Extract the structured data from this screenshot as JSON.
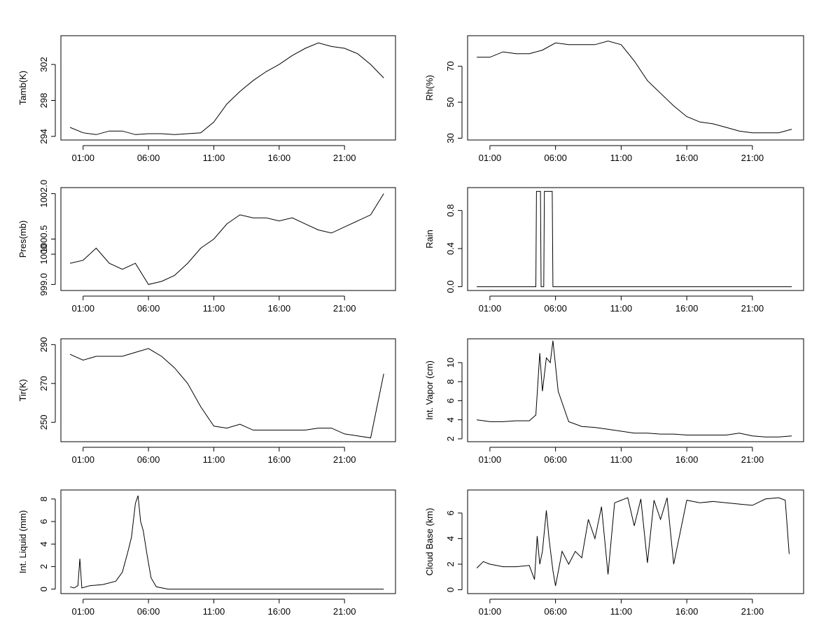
{
  "chart_data": [
    {
      "type": "line",
      "ylabel": "Tamb(K)",
      "x_ticks": [
        "01:00",
        "06:00",
        "11:00",
        "16:00",
        "21:00"
      ],
      "y_ticks": [
        "294",
        "298",
        "302"
      ],
      "ylim": [
        293.6,
        305.2
      ],
      "x": [
        0,
        1,
        2,
        3,
        4,
        5,
        6,
        7,
        8,
        9,
        10,
        11,
        12,
        13,
        14,
        15,
        16,
        17,
        18,
        19,
        20,
        21,
        22,
        23,
        24
      ],
      "values": [
        295.0,
        294.4,
        294.2,
        294.6,
        294.6,
        294.2,
        294.3,
        294.3,
        294.2,
        294.3,
        294.4,
        295.6,
        297.6,
        299.0,
        300.2,
        301.2,
        302.0,
        303.0,
        303.8,
        304.4,
        304.0,
        303.8,
        303.2,
        302.0,
        300.5
      ]
    },
    {
      "type": "line",
      "ylabel": "Rh(%)",
      "x_ticks": [
        "01:00",
        "06:00",
        "11:00",
        "16:00",
        "21:00"
      ],
      "y_ticks": [
        "30",
        "50",
        "70"
      ],
      "ylim": [
        29,
        87
      ],
      "x": [
        0,
        1,
        2,
        3,
        4,
        5,
        6,
        7,
        8,
        9,
        10,
        11,
        12,
        13,
        14,
        15,
        16,
        17,
        18,
        19,
        20,
        21,
        22,
        23,
        24
      ],
      "values": [
        75,
        75,
        78,
        77,
        77,
        79,
        83,
        82,
        82,
        82,
        84,
        82,
        73,
        62,
        55,
        48,
        42,
        39,
        38,
        36,
        34,
        33,
        33,
        33,
        35
      ]
    },
    {
      "type": "line",
      "ylabel": "Pres(mb)",
      "x_ticks": [
        "01:00",
        "06:00",
        "11:00",
        "16:00",
        "21:00"
      ],
      "y_ticks": [
        "999.0",
        "1000",
        "1000.5",
        "1002.0"
      ],
      "ylim": [
        998.8,
        1002.2
      ],
      "x": [
        0,
        1,
        2,
        3,
        4,
        5,
        6,
        7,
        8,
        9,
        10,
        11,
        12,
        13,
        14,
        15,
        16,
        17,
        18,
        19,
        20,
        21,
        22,
        23,
        24
      ],
      "values": [
        999.7,
        999.8,
        1000.2,
        999.7,
        999.5,
        999.7,
        999.0,
        999.1,
        999.3,
        999.7,
        1000.2,
        1000.5,
        1001.0,
        1001.3,
        1001.2,
        1001.2,
        1001.1,
        1001.2,
        1001.0,
        1000.8,
        1000.7,
        1000.9,
        1001.1,
        1001.3,
        1002.0
      ]
    },
    {
      "type": "line",
      "ylabel": "Rain",
      "x_ticks": [
        "01:00",
        "06:00",
        "11:00",
        "16:00",
        "21:00"
      ],
      "y_ticks": [
        "0.0",
        "0.4",
        "0.8"
      ],
      "ylim": [
        -0.04,
        1.04
      ],
      "x": [
        0,
        4.5,
        4.55,
        4.85,
        4.9,
        5.1,
        5.15,
        5.75,
        5.8,
        24
      ],
      "values": [
        0,
        0,
        1,
        1,
        0,
        0,
        1,
        1,
        0,
        0
      ]
    },
    {
      "type": "line",
      "ylabel": "Tir(K)",
      "x_ticks": [
        "01:00",
        "06:00",
        "11:00",
        "16:00",
        "21:00"
      ],
      "y_ticks": [
        "250",
        "270",
        "290"
      ],
      "ylim": [
        240,
        293
      ],
      "x": [
        0,
        1,
        2,
        3,
        4,
        5,
        6,
        7,
        8,
        9,
        10,
        11,
        12,
        13,
        14,
        15,
        16,
        17,
        18,
        19,
        20,
        21,
        22,
        23,
        24
      ],
      "values": [
        285,
        282,
        284,
        284,
        284,
        286,
        288,
        284,
        278,
        270,
        258,
        248,
        247,
        249,
        246,
        246,
        246,
        246,
        246,
        247,
        247,
        244,
        243,
        242,
        275
      ]
    },
    {
      "type": "line",
      "ylabel": "Int. Vapor (cm)",
      "x_ticks": [
        "01:00",
        "06:00",
        "11:00",
        "16:00",
        "21:00"
      ],
      "y_ticks": [
        "2",
        "4",
        "6",
        "8",
        "10"
      ],
      "ylim": [
        1.7,
        12.5
      ],
      "x": [
        0,
        1,
        2,
        3,
        4,
        4.5,
        4.8,
        5.0,
        5.3,
        5.6,
        5.8,
        6.2,
        7,
        8,
        9,
        10,
        11,
        12,
        13,
        14,
        15,
        16,
        17,
        18,
        19,
        20,
        21,
        22,
        23,
        24
      ],
      "values": [
        4.0,
        3.8,
        3.8,
        3.9,
        3.9,
        4.5,
        11.0,
        7.0,
        10.5,
        10.0,
        12.3,
        7.0,
        3.8,
        3.3,
        3.2,
        3.0,
        2.8,
        2.6,
        2.6,
        2.5,
        2.5,
        2.4,
        2.4,
        2.4,
        2.4,
        2.6,
        2.3,
        2.2,
        2.2,
        2.3
      ]
    },
    {
      "type": "line",
      "ylabel": "Int. Liquid (mm)",
      "x_ticks": [
        "01:00",
        "06:00",
        "11:00",
        "16:00",
        "21:00"
      ],
      "y_ticks": [
        "0",
        "2",
        "4",
        "6",
        "8"
      ],
      "ylim": [
        -0.4,
        8.8
      ],
      "x": [
        0,
        0.3,
        0.6,
        0.75,
        0.9,
        1.5,
        2.5,
        3.5,
        4.0,
        4.4,
        4.7,
        5.0,
        5.2,
        5.4,
        5.6,
        5.9,
        6.2,
        6.6,
        7.5,
        10,
        15,
        20,
        24
      ],
      "values": [
        0.2,
        0.1,
        0.3,
        2.7,
        0.1,
        0.3,
        0.4,
        0.7,
        1.5,
        3.2,
        4.6,
        7.6,
        8.3,
        6.0,
        5.2,
        3.0,
        1.0,
        0.2,
        0.0,
        0.0,
        0.0,
        0.0,
        0.0
      ]
    },
    {
      "type": "line",
      "ylabel": "Cloud Base (km)",
      "x_ticks": [
        "01:00",
        "06:00",
        "11:00",
        "16:00",
        "21:00"
      ],
      "y_ticks": [
        "0",
        "2",
        "4",
        "6"
      ],
      "ylim": [
        -0.3,
        7.8
      ],
      "x": [
        0,
        0.5,
        1.0,
        1.5,
        2.0,
        3.0,
        4.0,
        4.4,
        4.6,
        4.8,
        5.0,
        5.3,
        5.5,
        5.8,
        6.0,
        6.5,
        7.0,
        7.5,
        8.0,
        8.5,
        9.0,
        9.5,
        10.0,
        10.5,
        11.0,
        11.5,
        12.0,
        12.5,
        13.0,
        13.5,
        14.0,
        14.5,
        15.0,
        16.0,
        17.0,
        18.0,
        19.0,
        20.0,
        21.0,
        22.0,
        23.0,
        23.5,
        23.8
      ],
      "values": [
        1.7,
        2.2,
        2.0,
        1.9,
        1.8,
        1.8,
        1.9,
        0.8,
        4.2,
        2.0,
        3.0,
        6.2,
        4.0,
        1.5,
        0.3,
        3.0,
        2.0,
        3.0,
        2.5,
        5.5,
        4.0,
        6.5,
        1.2,
        6.8,
        7.0,
        7.2,
        5.0,
        7.1,
        2.1,
        7.0,
        5.5,
        7.2,
        2.0,
        7.0,
        6.8,
        6.9,
        6.8,
        6.7,
        6.6,
        7.1,
        7.2,
        7.0,
        2.8
      ]
    }
  ]
}
